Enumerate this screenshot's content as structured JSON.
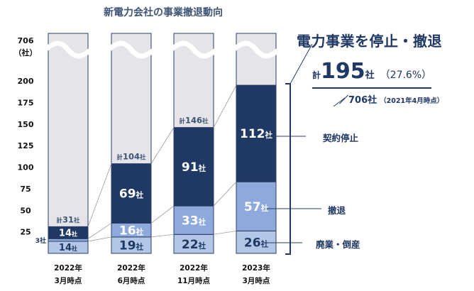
{
  "chart_data": {
    "type": "bar",
    "stacked": true,
    "title": "新電力会社の事業撤退動向",
    "ylabel_top": "706",
    "ylabel_unit": "（社）",
    "yticks": [
      "200",
      "175",
      "150",
      "125",
      "100",
      "75",
      "50",
      "25"
    ],
    "ytick_values": [
      200,
      175,
      150,
      125,
      100,
      75,
      50,
      25
    ],
    "ylim": [
      0,
      706
    ],
    "axis_break": true,
    "categories": [
      {
        "year": "2022年",
        "month": "3月時点"
      },
      {
        "year": "2022年",
        "month": "6月時点"
      },
      {
        "year": "2022年",
        "month": "11月時点"
      },
      {
        "year": "2023年",
        "month": "3月時点"
      }
    ],
    "series": [
      {
        "name": "廃業・倒産",
        "color": "#B4C6E7",
        "values": [
          14,
          19,
          22,
          26
        ],
        "labels": [
          "14社",
          "19社",
          "22社",
          "26社"
        ]
      },
      {
        "name": "撤退",
        "color": "#8EA9DB",
        "values": [
          3,
          16,
          33,
          57
        ],
        "labels": [
          "3社",
          "16社",
          "33社",
          "57社"
        ]
      },
      {
        "name": "契約停止",
        "color": "#203864",
        "values": [
          14,
          69,
          91,
          112
        ],
        "labels": [
          "14社",
          "69社",
          "91社",
          "112社"
        ]
      }
    ],
    "totals": [
      31,
      104,
      146,
      195
    ],
    "total_labels": [
      {
        "prefix": "計",
        "num": "31",
        "unit": "社"
      },
      {
        "prefix": "計",
        "num": "104",
        "unit": "社"
      },
      {
        "prefix": "計",
        "num": "146",
        "unit": "社"
      },
      null
    ],
    "background_total": 706
  },
  "annotation": {
    "headline": "電力事業を停止・撤退",
    "total_prefix": "計",
    "total_value": "195",
    "total_unit": "社",
    "total_pct": "（27.6%）",
    "base_value": "／706社",
    "base_note": "（2021年4月時点）"
  },
  "legend": {
    "contract_stop": "契約停止",
    "withdrawal": "撤退",
    "closure": "廃業・倒産"
  },
  "colors": {
    "navy": "#203864",
    "mid_blue": "#8EA9DB",
    "light_blue": "#B4C6E7",
    "bg_gray": "#E4E4E9"
  }
}
